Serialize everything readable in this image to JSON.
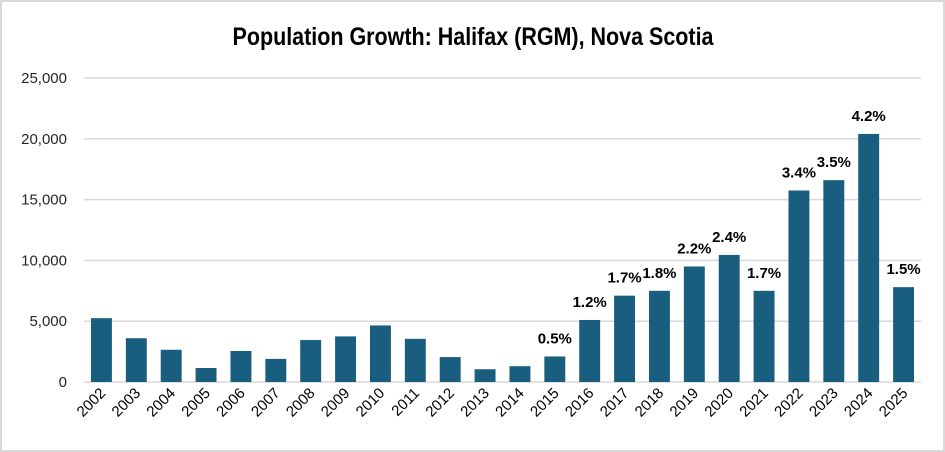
{
  "chart_data": {
    "type": "bar",
    "title": "Population Growth: Halifax (RGM), Nova Scotia",
    "xlabel": "",
    "ylabel": "",
    "ylim": [
      0,
      25000
    ],
    "yticks": [
      0,
      5000,
      10000,
      15000,
      20000,
      25000
    ],
    "ytick_labels": [
      "0",
      "5,000",
      "10,000",
      "15,000",
      "20,000",
      "25,000"
    ],
    "grid": true,
    "legend": "none",
    "bar_color": "#1a5e7f",
    "categories": [
      "2002",
      "2003",
      "2004",
      "2005",
      "2006",
      "2007",
      "2008",
      "2009",
      "2010",
      "2011",
      "2012",
      "2013",
      "2014",
      "2015",
      "2016",
      "2017",
      "2018",
      "2019",
      "2020",
      "2021",
      "2022",
      "2023",
      "2024",
      "2025"
    ],
    "values": [
      5250,
      3600,
      2650,
      1150,
      2550,
      1900,
      3450,
      3750,
      4650,
      3550,
      2050,
      1050,
      1300,
      2100,
      5100,
      7100,
      7500,
      9500,
      10450,
      7500,
      15750,
      16600,
      20400,
      7800
    ],
    "data_labels": [
      "",
      "",
      "",
      "",
      "",
      "",
      "",
      "",
      "",
      "",
      "",
      "",
      "",
      "0.5%",
      "1.2%",
      "1.7%",
      "1.8%",
      "2.2%",
      "2.4%",
      "1.7%",
      "3.4%",
      "3.5%",
      "4.2%",
      "1.5%"
    ]
  }
}
